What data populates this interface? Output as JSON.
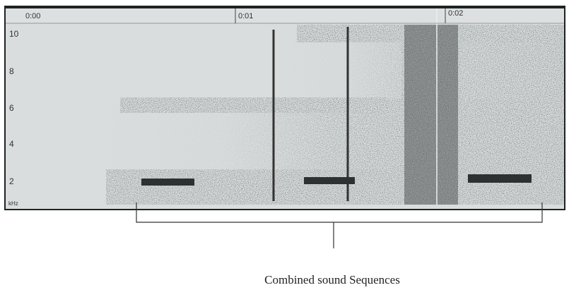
{
  "spectrogram": {
    "time_labels": [
      "0:00",
      "0:01",
      "0:02"
    ],
    "frequency_labels": [
      "10",
      "8",
      "6",
      "4",
      "2"
    ],
    "unit": "kHz"
  },
  "annotation": "Combined sound Sequences"
}
